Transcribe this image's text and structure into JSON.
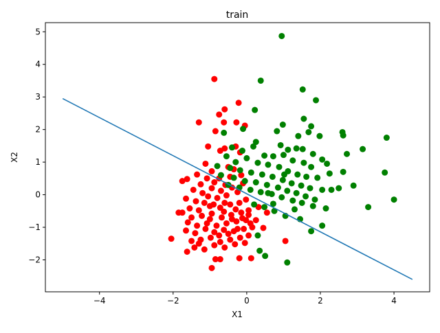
{
  "chart_data": {
    "type": "scatter",
    "title": "train",
    "xlabel": "X1",
    "ylabel": "X2",
    "xlim": [
      -5.47,
      4.97
    ],
    "ylim": [
      -2.98,
      5.28
    ],
    "xticks": [
      -4,
      -2,
      0,
      2,
      4
    ],
    "yticks": [
      -2,
      -1,
      0,
      1,
      2,
      3,
      4,
      5
    ],
    "grid": false,
    "legend": "none",
    "colors": {
      "class0": "#ff0000",
      "class1": "#008000",
      "line": "#1f77b4"
    },
    "line": {
      "x": [
        -5.0,
        4.5
      ],
      "y": [
        2.95,
        -2.6
      ]
    },
    "series": [
      {
        "color": "#ff0000",
        "points": [
          [
            -0.88,
            3.55
          ],
          [
            -0.22,
            2.82
          ],
          [
            -1.3,
            2.22
          ],
          [
            -0.75,
            2.46
          ],
          [
            -0.6,
            2.62
          ],
          [
            -0.28,
            2.22
          ],
          [
            -0.05,
            2.12
          ],
          [
            -0.85,
            1.95
          ],
          [
            -0.62,
            2.22
          ],
          [
            -1.05,
            1.48
          ],
          [
            -0.72,
            1.35
          ],
          [
            -0.3,
            1.48
          ],
          [
            -0.6,
            1.42
          ],
          [
            -0.18,
            1.3
          ],
          [
            -0.5,
            0.85
          ],
          [
            -1.12,
            0.95
          ],
          [
            -0.95,
            0.72
          ],
          [
            -0.35,
            0.78
          ],
          [
            -1.35,
            0.62
          ],
          [
            -1.62,
            0.48
          ],
          [
            -1.75,
            0.42
          ],
          [
            -1.25,
            0.32
          ],
          [
            -1.08,
            0.5
          ],
          [
            -0.75,
            0.5
          ],
          [
            -0.45,
            0.55
          ],
          [
            -0.15,
            0.6
          ],
          [
            -1.45,
            0.15
          ],
          [
            -1.2,
            0.05
          ],
          [
            -0.95,
            0.2
          ],
          [
            -0.7,
            0.12
          ],
          [
            -0.4,
            0.22
          ],
          [
            -1.65,
            -0.12
          ],
          [
            -1.38,
            -0.2
          ],
          [
            -1.05,
            -0.05
          ],
          [
            -0.8,
            -0.1
          ],
          [
            -0.55,
            -0.02
          ],
          [
            -0.25,
            0.08
          ],
          [
            -1.55,
            -0.42
          ],
          [
            -1.3,
            -0.48
          ],
          [
            -1.0,
            -0.35
          ],
          [
            -0.72,
            -0.4
          ],
          [
            -0.45,
            -0.3
          ],
          [
            -0.2,
            -0.25
          ],
          [
            -1.75,
            -0.55
          ],
          [
            -1.5,
            -0.7
          ],
          [
            -1.22,
            -0.65
          ],
          [
            -0.95,
            -0.58
          ],
          [
            -0.68,
            -0.7
          ],
          [
            -0.42,
            -0.62
          ],
          [
            -0.15,
            -0.55
          ],
          [
            0.05,
            -0.48
          ],
          [
            -1.6,
            -0.85
          ],
          [
            -1.35,
            -0.95
          ],
          [
            -1.08,
            -0.88
          ],
          [
            -0.82,
            -0.95
          ],
          [
            -0.55,
            -0.88
          ],
          [
            -0.28,
            -0.82
          ],
          [
            -0.02,
            -0.78
          ],
          [
            -1.65,
            -1.1
          ],
          [
            -1.4,
            -1.18
          ],
          [
            -1.12,
            -1.05
          ],
          [
            -0.88,
            -1.15
          ],
          [
            -0.62,
            -1.08
          ],
          [
            -0.35,
            -1.12
          ],
          [
            -0.08,
            -1.05
          ],
          [
            0.15,
            -1.0
          ],
          [
            -1.5,
            -1.42
          ],
          [
            -1.25,
            -1.38
          ],
          [
            -0.98,
            -1.32
          ],
          [
            -0.72,
            -1.45
          ],
          [
            -0.45,
            -1.38
          ],
          [
            -0.18,
            -1.32
          ],
          [
            0.05,
            -1.25
          ],
          [
            -1.42,
            -1.62
          ],
          [
            -1.15,
            -1.68
          ],
          [
            -0.88,
            -1.55
          ],
          [
            -0.6,
            -1.62
          ],
          [
            -0.32,
            -1.52
          ],
          [
            -0.05,
            -1.48
          ],
          [
            -1.62,
            -1.75
          ],
          [
            -0.85,
            -1.98
          ],
          [
            -0.72,
            -1.98
          ],
          [
            -0.2,
            -1.95
          ],
          [
            0.12,
            -1.95
          ],
          [
            -0.95,
            -2.25
          ],
          [
            -2.05,
            -1.35
          ],
          [
            1.05,
            -1.42
          ],
          [
            0.45,
            -1.02
          ],
          [
            0.25,
            -0.78
          ],
          [
            0.55,
            -0.55
          ],
          [
            0.32,
            -0.38
          ],
          [
            -1.85,
            -0.55
          ],
          [
            -0.1,
            0.35
          ],
          [
            -0.58,
            0.3
          ],
          [
            -0.88,
            0.38
          ],
          [
            -0.3,
            -0.45
          ],
          [
            -0.6,
            -0.25
          ],
          [
            -0.02,
            -0.15
          ],
          [
            -1.0,
            -0.75
          ],
          [
            -0.75,
            -1.25
          ],
          [
            -0.5,
            -1.2
          ],
          [
            -0.25,
            -1.05
          ],
          [
            -1.3,
            -1.5
          ],
          [
            -0.4,
            -0.75
          ],
          [
            -0.12,
            -0.72
          ],
          [
            -0.9,
            -0.3
          ],
          [
            -0.62,
            -0.52
          ],
          [
            -1.15,
            -0.25
          ],
          [
            0.1,
            -0.88
          ],
          [
            0.05,
            -0.62
          ]
        ]
      },
      {
        "color": "#008000",
        "points": [
          [
            0.95,
            4.87
          ],
          [
            0.38,
            3.5
          ],
          [
            1.52,
            3.23
          ],
          [
            1.88,
            2.9
          ],
          [
            0.22,
            2.6
          ],
          [
            1.55,
            2.33
          ],
          [
            0.98,
            2.15
          ],
          [
            1.75,
            2.1
          ],
          [
            0.82,
            1.95
          ],
          [
            1.4,
            1.8
          ],
          [
            1.68,
            1.92
          ],
          [
            1.98,
            1.8
          ],
          [
            2.6,
            1.92
          ],
          [
            2.62,
            1.82
          ],
          [
            3.8,
            1.75
          ],
          [
            -0.62,
            1.9
          ],
          [
            -0.1,
            2.02
          ],
          [
            0.25,
            1.62
          ],
          [
            0.92,
            1.52
          ],
          [
            1.12,
            1.38
          ],
          [
            1.35,
            1.42
          ],
          [
            1.52,
            1.4
          ],
          [
            1.8,
            1.25
          ],
          [
            2.05,
            1.08
          ],
          [
            2.72,
            1.25
          ],
          [
            3.15,
            1.4
          ],
          [
            -0.4,
            1.45
          ],
          [
            -0.12,
            1.35
          ],
          [
            0.18,
            1.48
          ],
          [
            0.48,
            1.2
          ],
          [
            0.72,
            1.18
          ],
          [
            1.0,
            1.22
          ],
          [
            1.25,
            1.05
          ],
          [
            1.55,
            0.98
          ],
          [
            1.75,
            0.85
          ],
          [
            2.18,
            0.95
          ],
          [
            2.62,
            0.7
          ],
          [
            -0.55,
            1.18
          ],
          [
            -0.3,
            1.0
          ],
          [
            0.0,
            1.12
          ],
          [
            0.3,
            0.98
          ],
          [
            0.58,
            0.92
          ],
          [
            0.88,
            0.85
          ],
          [
            1.12,
            0.72
          ],
          [
            1.38,
            0.62
          ],
          [
            1.62,
            0.55
          ],
          [
            1.92,
            0.52
          ],
          [
            2.25,
            0.65
          ],
          [
            2.5,
            0.2
          ],
          [
            2.9,
            0.28
          ],
          [
            3.75,
            0.68
          ],
          [
            -0.8,
            0.88
          ],
          [
            -0.45,
            0.82
          ],
          [
            -0.18,
            0.75
          ],
          [
            0.12,
            0.68
          ],
          [
            0.42,
            0.62
          ],
          [
            0.7,
            0.55
          ],
          [
            0.98,
            0.45
          ],
          [
            1.22,
            0.35
          ],
          [
            1.48,
            0.28
          ],
          [
            1.72,
            0.2
          ],
          [
            2.05,
            0.15
          ],
          [
            2.3,
            0.15
          ],
          [
            -0.7,
            0.6
          ],
          [
            -0.35,
            0.52
          ],
          [
            -0.05,
            0.42
          ],
          [
            0.25,
            0.38
          ],
          [
            0.55,
            0.3
          ],
          [
            0.85,
            0.22
          ],
          [
            1.1,
            0.12
          ],
          [
            1.35,
            0.05
          ],
          [
            1.6,
            -0.05
          ],
          [
            1.85,
            -0.15
          ],
          [
            -0.5,
            0.3
          ],
          [
            -0.2,
            0.22
          ],
          [
            0.1,
            0.15
          ],
          [
            0.38,
            0.08
          ],
          [
            0.68,
            0.02
          ],
          [
            0.95,
            -0.08
          ],
          [
            1.25,
            -0.18
          ],
          [
            1.5,
            -0.25
          ],
          [
            1.8,
            -0.35
          ],
          [
            2.15,
            -0.42
          ],
          [
            3.3,
            -0.38
          ],
          [
            4.0,
            -0.15
          ],
          [
            0.2,
            -0.3
          ],
          [
            0.48,
            -0.38
          ],
          [
            0.75,
            -0.5
          ],
          [
            1.05,
            -0.65
          ],
          [
            1.3,
            -0.45
          ],
          [
            1.45,
            -0.75
          ],
          [
            2.05,
            -0.95
          ],
          [
            1.75,
            -1.12
          ],
          [
            0.3,
            -1.25
          ],
          [
            0.35,
            -1.72
          ],
          [
            0.5,
            -1.88
          ],
          [
            1.1,
            -2.08
          ],
          [
            0.72,
            -0.28
          ],
          [
            1.02,
            0.62
          ],
          [
            0.58,
            0.05
          ]
        ]
      }
    ]
  }
}
